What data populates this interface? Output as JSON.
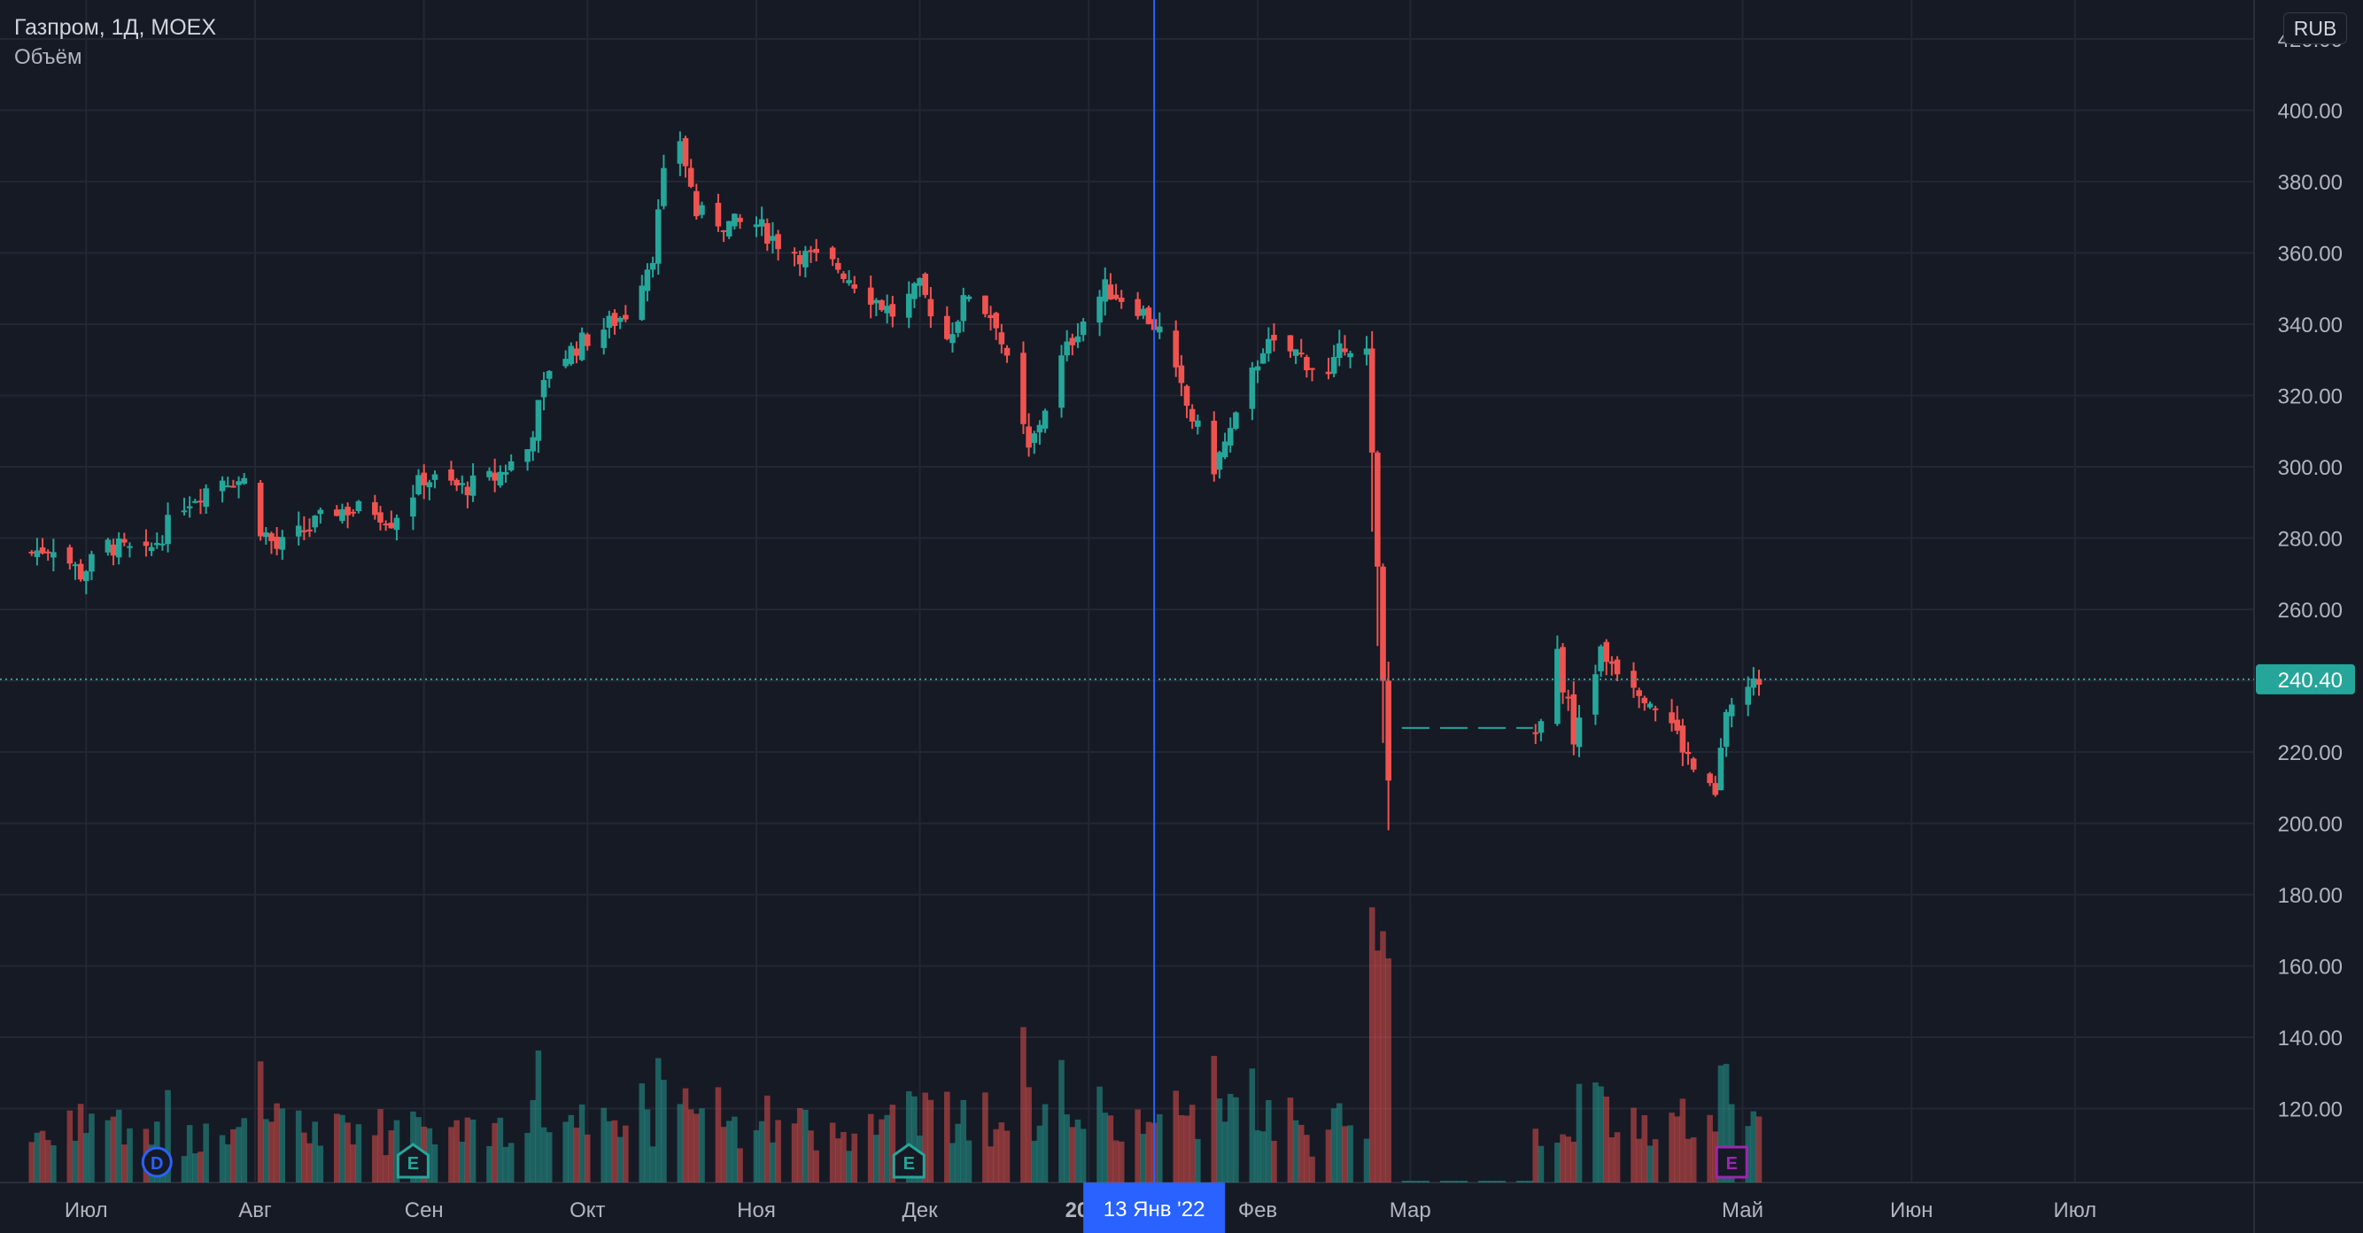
{
  "legend": {
    "symbol_line": "Газпром, 1Д, MOEX",
    "volume_label": "Объём"
  },
  "currency": "RUB",
  "colors": {
    "background": "#161a25",
    "grid": "#232733",
    "up": "#26a69a",
    "down": "#ef5350",
    "crosshair": "#2962ff",
    "last_price": "#26a69a",
    "earnings_e": "#26a69a",
    "earnings_e_upcoming": "#9c27b0",
    "dividend": "#2962ff",
    "text": "#b2b5be"
  },
  "crosshair": {
    "date_label": "13 Янв '22"
  },
  "last_price": {
    "value": 240.4,
    "label": "240.40"
  },
  "chart_data": {
    "type": "candlestick",
    "y_axis": {
      "min": 100,
      "max": 420,
      "ticks": [
        "120.00",
        "140.00",
        "160.00",
        "180.00",
        "200.00",
        "220.00",
        "240.00",
        "260.00",
        "280.00",
        "300.00",
        "320.00",
        "340.00",
        "360.00",
        "380.00",
        "400.00",
        "420.00"
      ]
    },
    "x_axis": {
      "labels": [
        "Июл",
        "Авг",
        "Сен",
        "Окт",
        "Ноя",
        "Дек",
        "2022",
        "Фев",
        "Мар",
        "Май",
        "Июн",
        "Июл"
      ]
    },
    "series": [
      {
        "name": "Газпром",
        "anchors": [
          [
            "2021-06-21",
            276
          ],
          [
            "2021-06-25",
            278
          ],
          [
            "2021-06-30",
            270
          ],
          [
            "2021-07-05",
            278
          ],
          [
            "2021-07-12",
            275
          ],
          [
            "2021-07-19",
            290
          ],
          [
            "2021-07-26",
            297
          ],
          [
            "2021-07-30",
            296
          ],
          [
            "2021-08-02",
            283
          ],
          [
            "2021-08-05",
            277
          ],
          [
            "2021-08-10",
            282
          ],
          [
            "2021-08-16",
            288
          ],
          [
            "2021-08-23",
            288
          ],
          [
            "2021-08-26",
            285
          ],
          [
            "2021-09-01",
            297
          ],
          [
            "2021-09-08",
            294
          ],
          [
            "2021-09-14",
            297
          ],
          [
            "2021-09-20",
            305
          ],
          [
            "2021-09-24",
            328
          ],
          [
            "2021-09-30",
            335
          ],
          [
            "2021-10-05",
            340
          ],
          [
            "2021-10-08",
            343
          ],
          [
            "2021-10-13",
            360
          ],
          [
            "2021-10-15",
            381
          ],
          [
            "2021-10-18",
            392
          ],
          [
            "2021-10-21",
            371
          ],
          [
            "2021-10-27",
            368
          ],
          [
            "2021-11-01",
            368
          ],
          [
            "2021-11-05",
            363
          ],
          [
            "2021-11-10",
            359
          ],
          [
            "2021-11-16",
            356
          ],
          [
            "2021-11-22",
            348
          ],
          [
            "2021-11-26",
            343
          ],
          [
            "2021-12-01",
            350
          ],
          [
            "2021-12-06",
            336
          ],
          [
            "2021-12-10",
            349
          ],
          [
            "2021-12-15",
            341
          ],
          [
            "2021-12-21",
            304
          ],
          [
            "2021-12-27",
            330
          ],
          [
            "2021-12-30",
            339
          ],
          [
            "2022-01-04",
            350
          ],
          [
            "2022-01-10",
            345
          ],
          [
            "2022-01-14",
            338
          ],
          [
            "2022-01-19",
            317
          ],
          [
            "2022-01-24",
            300
          ],
          [
            "2022-01-28",
            313
          ],
          [
            "2022-02-02",
            334
          ],
          [
            "2022-02-08",
            332
          ],
          [
            "2022-02-14",
            325
          ],
          [
            "2022-02-17",
            335
          ],
          [
            "2022-02-21",
            332
          ],
          [
            "2022-02-22",
            304
          ],
          [
            "2022-02-24",
            240
          ],
          [
            "2022-02-25",
            212
          ],
          [
            "2022-03-24",
            226
          ],
          [
            "2022-03-28",
            247
          ],
          [
            "2022-03-31",
            225
          ],
          [
            "2022-04-05",
            248
          ],
          [
            "2022-04-11",
            240
          ],
          [
            "2022-04-18",
            228
          ],
          [
            "2022-04-22",
            215
          ],
          [
            "2022-04-26",
            207
          ],
          [
            "2022-04-28",
            232
          ],
          [
            "2022-05-04",
            240.4
          ]
        ]
      }
    ],
    "volume_series": {
      "name": "Объём",
      "scale_max": 100,
      "note": "volume in relative units (0-100 of pane height)"
    },
    "events": [
      {
        "kind": "dividend",
        "letter": "D",
        "date": "2021-07-14"
      },
      {
        "kind": "earnings",
        "letter": "E",
        "date": "2021-08-30"
      },
      {
        "kind": "earnings",
        "letter": "E",
        "date": "2021-11-29"
      },
      {
        "kind": "earnings_upcoming",
        "letter": "E",
        "date": "2022-04-29"
      }
    ]
  }
}
